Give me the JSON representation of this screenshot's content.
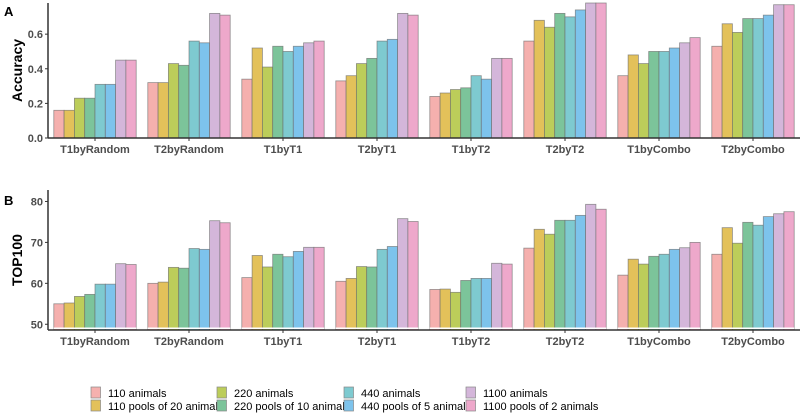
{
  "chart_data": [
    {
      "panel": "A",
      "type": "bar",
      "ylabel": "Accuracy",
      "xlabel": "",
      "ylim": [
        0,
        0.78
      ],
      "yticks": [
        "0.0",
        "0.2",
        "0.4",
        "0.6"
      ],
      "ytick_values": [
        0,
        0.2,
        0.4,
        0.6
      ],
      "grid": false,
      "categories": [
        "T1byRandom",
        "T2byRandom",
        "T1byT1",
        "T2byT1",
        "T1byT2",
        "T2byT2",
        "T1byCombo",
        "T2byCombo"
      ],
      "series": [
        {
          "name": "110 animals",
          "values": [
            0.16,
            0.32,
            0.34,
            0.33,
            0.24,
            0.56,
            0.36,
            0.53
          ]
        },
        {
          "name": "110 pools of 20 animals",
          "values": [
            0.16,
            0.32,
            0.52,
            0.36,
            0.26,
            0.68,
            0.48,
            0.66
          ]
        },
        {
          "name": "220 animals",
          "values": [
            0.23,
            0.43,
            0.41,
            0.43,
            0.28,
            0.64,
            0.43,
            0.61
          ]
        },
        {
          "name": "220 pools of 10 animals",
          "values": [
            0.23,
            0.42,
            0.53,
            0.46,
            0.29,
            0.72,
            0.5,
            0.69
          ]
        },
        {
          "name": "440 animals",
          "values": [
            0.31,
            0.56,
            0.5,
            0.56,
            0.36,
            0.7,
            0.5,
            0.69
          ]
        },
        {
          "name": "440 pools of 5 animals",
          "values": [
            0.31,
            0.55,
            0.53,
            0.57,
            0.34,
            0.74,
            0.52,
            0.71
          ]
        },
        {
          "name": "1100 animals",
          "values": [
            0.45,
            0.72,
            0.55,
            0.72,
            0.46,
            0.78,
            0.55,
            0.77
          ]
        },
        {
          "name": "1100 pools of 2 animals",
          "values": [
            0.45,
            0.71,
            0.56,
            0.71,
            0.46,
            0.78,
            0.58,
            0.77
          ]
        }
      ]
    },
    {
      "panel": "B",
      "type": "bar",
      "ylabel": "TOP100",
      "xlabel": "",
      "ylim": [
        48.6,
        82.8
      ],
      "yticks": [
        "50",
        "60",
        "70",
        "80"
      ],
      "ytick_values": [
        50,
        60,
        70,
        80
      ],
      "grid": false,
      "categories": [
        "T1byRandom",
        "T2byRandom",
        "T1byT1",
        "T2byT1",
        "T1byT2",
        "T2byT2",
        "T1byCombo",
        "T2byCombo"
      ],
      "series": [
        {
          "name": "110 animals",
          "values": [
            55.0,
            60.0,
            61.4,
            60.5,
            58.5,
            68.6,
            62.0,
            67.1
          ]
        },
        {
          "name": "110 pools of 20 animals",
          "values": [
            55.2,
            60.3,
            66.8,
            61.2,
            58.6,
            73.2,
            65.9,
            73.6
          ]
        },
        {
          "name": "220 animals",
          "values": [
            56.8,
            63.9,
            64.0,
            64.1,
            57.8,
            72.0,
            64.7,
            69.8
          ]
        },
        {
          "name": "220 pools of 10 animals",
          "values": [
            57.3,
            63.7,
            67.1,
            64.0,
            60.7,
            75.4,
            66.6,
            74.9
          ]
        },
        {
          "name": "440 animals",
          "values": [
            59.8,
            68.5,
            66.5,
            68.3,
            61.2,
            75.4,
            67.1,
            74.2
          ]
        },
        {
          "name": "440 pools of 5 animals",
          "values": [
            59.8,
            68.3,
            67.8,
            69.0,
            61.2,
            76.6,
            68.3,
            76.3
          ]
        },
        {
          "name": "1100 animals",
          "values": [
            64.8,
            75.3,
            68.8,
            75.8,
            64.9,
            79.3,
            68.7,
            77.0
          ]
        },
        {
          "name": "1100 pools of 2 animals",
          "values": [
            64.6,
            74.8,
            68.8,
            75.1,
            64.7,
            78.1,
            70.0,
            77.5
          ]
        }
      ]
    }
  ],
  "colors": [
    "#F5B0AE",
    "#E3C15A",
    "#BCCD5A",
    "#7CC49A",
    "#7ECAD0",
    "#7DC3EC",
    "#D4B6DA",
    "#EEA8CB"
  ],
  "legend": {
    "placement": "bottom",
    "items": [
      "110 animals",
      "110 pools of 20 animals",
      "220 animals",
      "220 pools of 10 animals",
      "440 animals",
      "440 pools of 5 animals",
      "1100 animals",
      "1100 pools of 2 animals"
    ]
  }
}
